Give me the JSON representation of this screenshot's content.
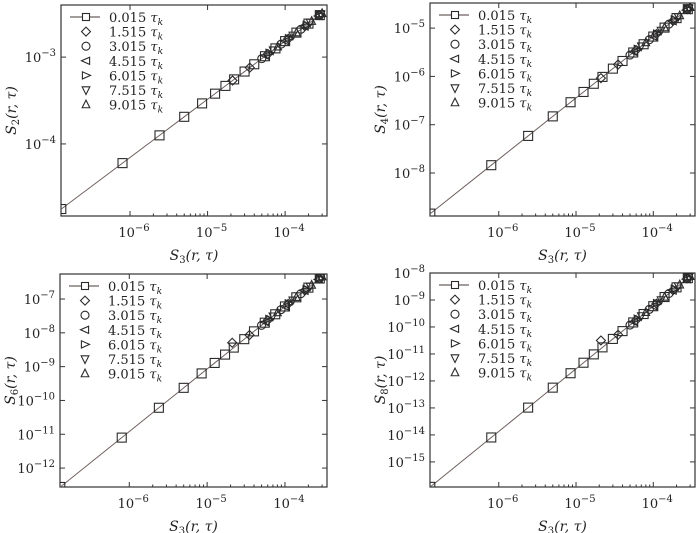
{
  "colors": {
    "line": "#6e605d",
    "marker": "#2a2a2a",
    "axis": "#333333"
  },
  "chart_data": [
    {
      "type": "scatter",
      "panel": "top-left",
      "xlabel": {
        "base": "S",
        "sub": "3",
        "rest": "(r, τ)"
      },
      "ylabel": {
        "base": "S",
        "sub": "2",
        "rest": "(r, τ)"
      },
      "xscale": "log",
      "yscale": "log",
      "xlim_log10": [
        -6.89,
        -3.46
      ],
      "ylim_log10": [
        -4.83,
        -2.4
      ],
      "xtick_exponents": [
        -6,
        -5,
        -4
      ],
      "ytick_exponents": [
        -4,
        -3
      ],
      "power_law": {
        "log10_C": -0.136,
        "exponent": 0.67
      },
      "legend_position": "top-left"
    },
    {
      "type": "scatter",
      "panel": "top-right",
      "xlabel": {
        "base": "S",
        "sub": "3",
        "rest": "(r, τ)"
      },
      "ylabel": {
        "base": "S",
        "sub": "4",
        "rest": "(r, τ)"
      },
      "xscale": "log",
      "yscale": "log",
      "xlim_log10": [
        -6.89,
        -3.46
      ],
      "ylim_log10": [
        -8.89,
        -4.48
      ],
      "xtick_exponents": [
        -6,
        -5,
        -4
      ],
      "ytick_exponents": [
        -8,
        -7,
        -6,
        -5
      ],
      "power_law": {
        "log10_C": -0.095,
        "exponent": 1.27
      },
      "legend_position": "top-left"
    },
    {
      "type": "scatter",
      "panel": "bottom-left",
      "xlabel": {
        "base": "S",
        "sub": "3",
        "rest": "(r, τ)"
      },
      "ylabel": {
        "base": "S",
        "sub": "6",
        "rest": "(r, τ)"
      },
      "xscale": "log",
      "yscale": "log",
      "xlim_log10": [
        -6.89,
        -3.46
      ],
      "ylim_log10": [
        -12.56,
        -6.26
      ],
      "xtick_exponents": [
        -6,
        -5,
        -4
      ],
      "ytick_exponents": [
        -12,
        -11,
        -10,
        -9,
        -8,
        -7
      ],
      "power_law": {
        "log10_C": 0.18,
        "exponent": 1.85
      },
      "diamond_first_offset_log10": 0.18,
      "legend_position": "top-left"
    },
    {
      "type": "scatter",
      "panel": "bottom-right",
      "xlabel": {
        "base": "S",
        "sub": "3",
        "rest": "(r, τ)"
      },
      "ylabel": {
        "base": "S",
        "sub": "8",
        "rest": "(r, τ)"
      },
      "xscale": "log",
      "yscale": "log",
      "xlim_log10": [
        -6.89,
        -3.46
      ],
      "ylim_log10": [
        -15.93,
        -8.0
      ],
      "xtick_exponents": [
        -6,
        -5,
        -4
      ],
      "ytick_exponents": [
        -15,
        -14,
        -13,
        -12,
        -11,
        -10,
        -9,
        -8
      ],
      "power_law": {
        "log10_C": 0.05,
        "exponent": 2.32
      },
      "diamond_first_offset_log10": 0.3,
      "legend_position": "top-left"
    }
  ],
  "series": [
    {
      "name": "0.015",
      "tau": "τ",
      "tau_sub": "k",
      "marker": "square",
      "line": true,
      "x": [
        1.3e-07,
        8e-07,
        2.4e-06,
        5e-06,
        8.5e-06,
        1.25e-05,
        1.7e-05,
        2.2e-05,
        3e-05,
        4e-05,
        5.5e-05,
        7.5e-05,
        0.0001,
        0.00014,
        0.0002,
        0.00028
      ]
    },
    {
      "name": "1.515",
      "tau": "τ",
      "tau_sub": "k",
      "marker": "diamond",
      "line": false,
      "x": [
        2.1e-05,
        3.5e-05,
        6e-05,
        0.00011,
        0.00018,
        0.00028
      ]
    },
    {
      "name": "3.015",
      "tau": "τ",
      "tau_sub": "k",
      "marker": "circle",
      "line": false,
      "x": [
        5e-05,
        8.9e-05,
        0.00016,
        0.000275
      ]
    },
    {
      "name": "4.515",
      "tau": "τ",
      "tau_sub": "k",
      "marker": "triangle-left",
      "line": false,
      "x": [
        5.6e-05,
        0.0001,
        0.000178,
        0.00027
      ]
    },
    {
      "name": "6.015",
      "tau": "τ",
      "tau_sub": "k",
      "marker": "triangle-right",
      "line": false,
      "x": [
        6.3e-05,
        0.000112,
        0.00019,
        0.00028
      ]
    },
    {
      "name": "7.515",
      "tau": "τ",
      "tau_sub": "k",
      "marker": "triangle-down",
      "line": false,
      "x": [
        7e-05,
        0.000126,
        0.00021,
        0.00029
      ]
    },
    {
      "name": "9.015",
      "tau": "τ",
      "tau_sub": "k",
      "marker": "triangle-up",
      "line": false,
      "x": [
        8e-05,
        0.00014,
        0.00022,
        0.0003
      ]
    }
  ]
}
